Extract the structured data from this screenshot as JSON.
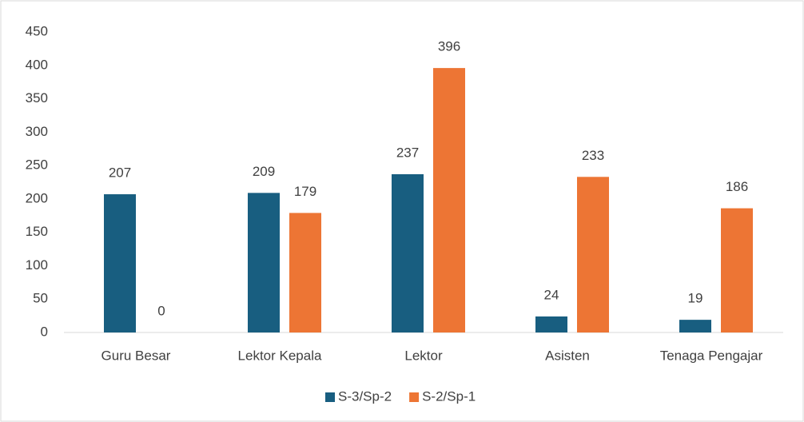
{
  "chart_data": {
    "type": "bar",
    "categories": [
      "Guru Besar",
      "Lektor Kepala",
      "Lektor",
      "Asisten",
      "Tenaga Pengajar"
    ],
    "series": [
      {
        "name": "S-3/Sp-2",
        "color": "#185e80",
        "values": [
          207,
          209,
          237,
          24,
          19
        ]
      },
      {
        "name": "S-2/Sp-1",
        "color": "#ed7534",
        "values": [
          0,
          179,
          396,
          233,
          186
        ]
      }
    ],
    "ylim": [
      0,
      450
    ],
    "yticks": [
      0,
      50,
      100,
      150,
      200,
      250,
      300,
      350,
      400,
      450
    ],
    "grid": false,
    "legend": "bottom"
  }
}
